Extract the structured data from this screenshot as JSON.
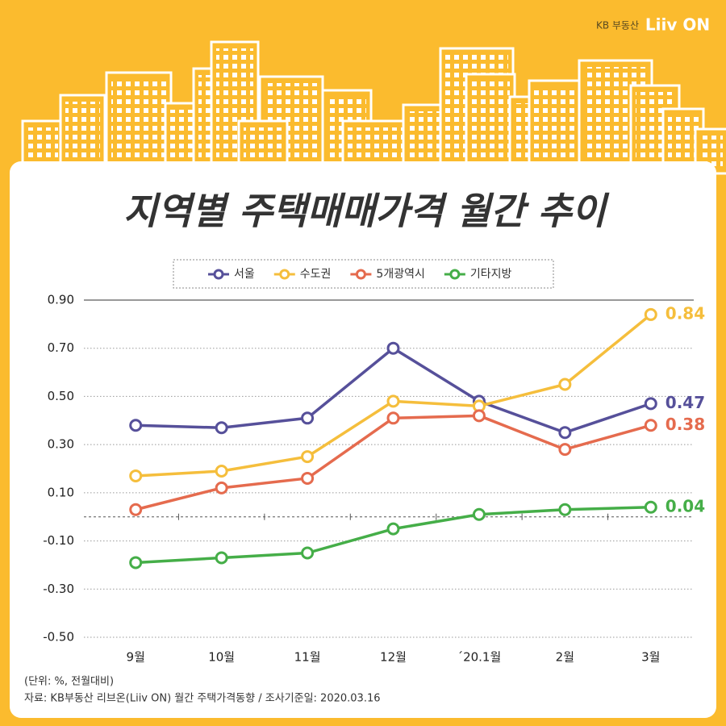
{
  "brand": "KB 부동산",
  "logo": "Liiv ON",
  "chart_data": {
    "type": "line",
    "title": "지역별 주택매매가격 월간 추이",
    "categories": [
      "9월",
      "10월",
      "11월",
      "12월",
      "´20.1월",
      "2월",
      "3월"
    ],
    "series": [
      {
        "name": "서울",
        "color": "#56509a",
        "values": [
          0.38,
          0.37,
          0.41,
          0.7,
          0.48,
          0.35,
          0.47
        ]
      },
      {
        "name": "수도권",
        "color": "#f5be3c",
        "values": [
          0.17,
          0.19,
          0.25,
          0.48,
          0.46,
          0.55,
          0.84
        ]
      },
      {
        "name": "5개광역시",
        "color": "#e56b4e",
        "values": [
          0.03,
          0.12,
          0.16,
          0.41,
          0.42,
          0.28,
          0.38
        ]
      },
      {
        "name": "기타지방",
        "color": "#45ae48",
        "values": [
          -0.19,
          -0.17,
          -0.15,
          -0.05,
          0.01,
          0.03,
          0.04
        ]
      }
    ],
    "ylim": [
      -0.5,
      0.9
    ],
    "yticks": [
      {
        "value": -0.5,
        "label": "-0.50"
      },
      {
        "value": -0.3,
        "label": "-0.30"
      },
      {
        "value": -0.1,
        "label": "-0.10"
      },
      {
        "value": 0.1,
        "label": "0.10"
      },
      {
        "value": 0.3,
        "label": "0.30"
      },
      {
        "value": 0.5,
        "label": "0.50"
      },
      {
        "value": 0.7,
        "label": "0.70"
      },
      {
        "value": 0.9,
        "label": "0.90"
      }
    ],
    "grid": true,
    "unit_note": "(단위: %, 전월대비)",
    "source": "자료: KB부동산 리브온(Liiv ON) 월간 주택가격동향 / 조사기준일: 2020.03.16"
  }
}
